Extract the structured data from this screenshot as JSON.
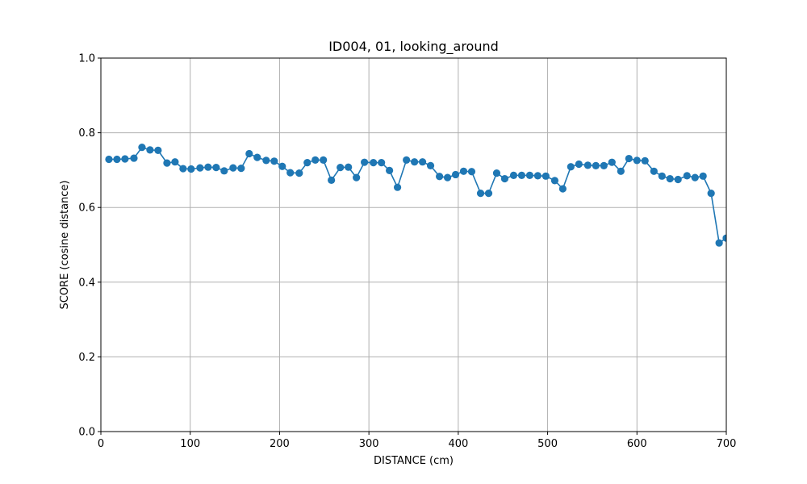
{
  "chart_data": {
    "type": "line",
    "title": "ID004, 01, looking_around",
    "xlabel": "DISTANCE (cm)",
    "ylabel": "SCORE (cosine distance)",
    "xlim": [
      0,
      700
    ],
    "ylim": [
      0,
      1.0
    ],
    "xticks": [
      0,
      100,
      200,
      300,
      400,
      500,
      600,
      700
    ],
    "xtick_labels": [
      "0",
      "100",
      "200",
      "300",
      "400",
      "500",
      "600",
      "700"
    ],
    "yticks": [
      0,
      0.2,
      0.4,
      0.6,
      0.8,
      1.0
    ],
    "ytick_labels": [
      "0.0",
      "0.2",
      "0.4",
      "0.6",
      "0.8",
      "1.0"
    ],
    "grid": true,
    "marker": "circle",
    "color": "#1f77b4",
    "series": [
      {
        "x": [
          9,
          18,
          27,
          37,
          46,
          55,
          64,
          74,
          83,
          92,
          101,
          111,
          120,
          129,
          138,
          148,
          157,
          166,
          175,
          185,
          194,
          203,
          212,
          222,
          231,
          240,
          249,
          258,
          268,
          277,
          286,
          295,
          305,
          314,
          323,
          332,
          342,
          351,
          360,
          369,
          379,
          388,
          397,
          406,
          415,
          425,
          434,
          443,
          452,
          462,
          471,
          480,
          489,
          498,
          508,
          517,
          526,
          535,
          545,
          554,
          563,
          572,
          582,
          591,
          600,
          609,
          619,
          628,
          637,
          646,
          656,
          665,
          674,
          683,
          692,
          700
        ],
        "y": [
          0.729,
          0.729,
          0.73,
          0.732,
          0.761,
          0.754,
          0.753,
          0.719,
          0.722,
          0.704,
          0.703,
          0.706,
          0.708,
          0.707,
          0.698,
          0.706,
          0.705,
          0.744,
          0.734,
          0.726,
          0.724,
          0.71,
          0.693,
          0.692,
          0.72,
          0.727,
          0.727,
          0.673,
          0.707,
          0.708,
          0.68,
          0.721,
          0.72,
          0.72,
          0.699,
          0.654,
          0.727,
          0.722,
          0.722,
          0.712,
          0.683,
          0.68,
          0.688,
          0.697,
          0.696,
          0.638,
          0.638,
          0.692,
          0.677,
          0.686,
          0.686,
          0.686,
          0.685,
          0.684,
          0.672,
          0.65,
          0.709,
          0.716,
          0.713,
          0.712,
          0.712,
          0.721,
          0.697,
          0.731,
          0.726,
          0.725,
          0.697,
          0.684,
          0.677,
          0.675,
          0.685,
          0.68,
          0.684,
          0.638,
          0.505,
          0.518
        ]
      }
    ]
  }
}
